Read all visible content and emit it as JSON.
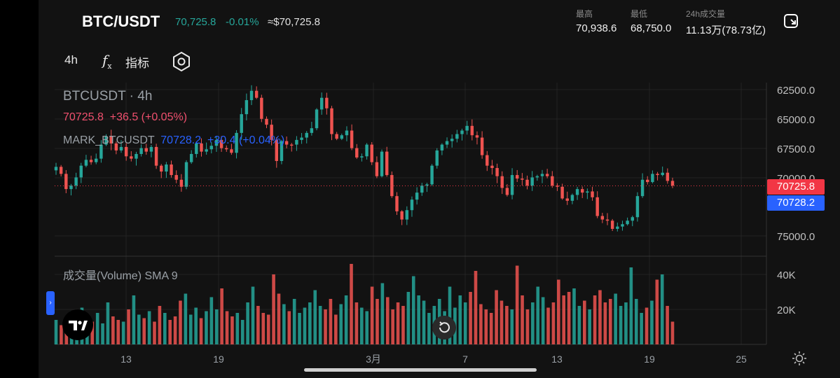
{
  "header": {
    "symbol": "BTC/USDT",
    "last_price": "70,725.8",
    "change_pct": "-0.01%",
    "usd_price": "≈$70,725.8",
    "stats": [
      {
        "label": "最高",
        "value": "70,938.6"
      },
      {
        "label": "最低",
        "value": "68,750.0"
      },
      {
        "label": "24h成交量",
        "value": "11.13万(78.73亿)"
      }
    ]
  },
  "toolbar": {
    "interval": "4h",
    "indicators_label": "指标",
    "fx_glyph": "f",
    "fx_sub": "x",
    "icons": [
      "fx-icon",
      "settings-hexagon-icon",
      "exit-fullscreen-icon",
      "tradingview-logo",
      "reset-icon",
      "sun-icon"
    ]
  },
  "legend": {
    "title": "BTCUSDT · 4h",
    "price_line": "70725.8  +36.5 (+0.05%)",
    "mark_name": "MARK_BTCUSDT",
    "mark_values": "70728.2  +30.4 (+0.04%)",
    "volume_title": "成交量(Volume) SMA 9"
  },
  "colors": {
    "up": "#26a69a",
    "down": "#ef5350",
    "last_tag": "#f23645",
    "mark_tag": "#2962ff",
    "background": "#121212"
  },
  "chart_data": [
    {
      "type": "candlestick",
      "title": "BTCUSDT · 4h",
      "y_axis_inverted": true,
      "y_ticks": [
        "62500.0",
        "65000.0",
        "67500.0",
        "70000.0",
        "75000.0"
      ],
      "ylim": [
        75900,
        61400
      ],
      "x_ticks": [
        "13",
        "19",
        "3月",
        "7",
        "13",
        "19",
        "25"
      ],
      "price_labels": [
        {
          "name": "last",
          "value": "70725.8"
        },
        {
          "name": "mark",
          "value": "70728.2"
        }
      ],
      "close_series": [
        69100,
        69700,
        71000,
        70700,
        70000,
        69000,
        68500,
        68700,
        68400,
        67200,
        66500,
        67100,
        67700,
        67400,
        68200,
        68400,
        68000,
        67500,
        67800,
        67400,
        69000,
        69500,
        68900,
        69800,
        70200,
        70800,
        68700,
        68000,
        67100,
        67800,
        67600,
        67300,
        66800,
        67500,
        67600,
        67900,
        66200,
        64600,
        63400,
        62600,
        63200,
        65000,
        65500,
        66800,
        68600,
        66900,
        67200,
        67200,
        66800,
        66600,
        66200,
        65800,
        64200,
        63200,
        64100,
        66300,
        66700,
        66400,
        66000,
        67500,
        68300,
        68200,
        67200,
        68700,
        69900,
        67800,
        69800,
        71600,
        72900,
        73600,
        72800,
        71900,
        71300,
        70700,
        70600,
        69000,
        67700,
        67200,
        66900,
        66700,
        66300,
        66000,
        65600,
        66400,
        66600,
        68100,
        69000,
        69200,
        69900,
        70900,
        71500,
        69800,
        70100,
        70200,
        70700,
        70000,
        69900,
        69700,
        69900,
        70700,
        70800,
        71800,
        72000,
        71500,
        71000,
        71300,
        71200,
        71700,
        73300,
        73600,
        73700,
        74400,
        74200,
        74000,
        73700,
        73400,
        71600,
        70200,
        70400,
        69700,
        69800,
        69600,
        70300,
        70700
      ],
      "close_series_sampled": "approximate closes read per ~2 candles"
    },
    {
      "type": "bar",
      "title": "成交量(Volume) SMA 9",
      "y_ticks": [
        "40K",
        "20K"
      ],
      "ylim": [
        0,
        50000
      ],
      "values": [
        14000,
        11000,
        13000,
        19000,
        17000,
        21000,
        15000,
        13000,
        18000,
        12000,
        24000,
        16000,
        14000,
        13000,
        20000,
        28000,
        17000,
        15000,
        19000,
        13000,
        22000,
        18000,
        14000,
        16000,
        25000,
        29000,
        17000,
        21000,
        15000,
        19000,
        27000,
        20000,
        32000,
        19000,
        16000,
        18000,
        14000,
        24000,
        33000,
        22000,
        18000,
        17000,
        40000,
        29000,
        23000,
        19000,
        26000,
        18000,
        21000,
        24000,
        31000,
        22000,
        20000,
        26000,
        17000,
        23000,
        28000,
        46000,
        24000,
        21000,
        19000,
        33000,
        26000,
        35000,
        27000,
        20000,
        24000,
        22000,
        30000,
        39000,
        28000,
        25000,
        18000,
        22000,
        26000,
        19000,
        33000,
        21000,
        28000,
        24000,
        30000,
        42000,
        23000,
        20000,
        18000,
        31000,
        25000,
        22000,
        20000,
        45000,
        28000,
        20000,
        24000,
        33000,
        27000,
        21000,
        24000,
        37000,
        28000,
        30000,
        32000,
        22000,
        25000,
        20000,
        28000,
        31000,
        24000,
        26000,
        29000,
        22000,
        24000,
        44000,
        26000,
        18000,
        21000,
        25000,
        37000,
        40000,
        22000,
        13000
      ]
    }
  ]
}
